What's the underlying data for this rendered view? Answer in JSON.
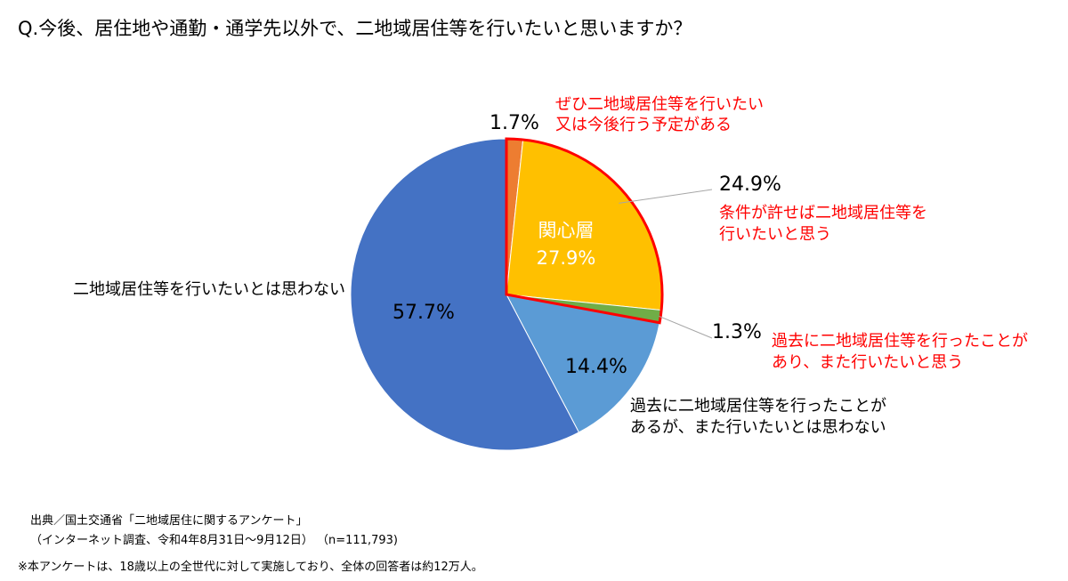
{
  "question": "Q.今後、居住地や通勤・通学先以外で、二地域居住等を行いたいと思いますか？",
  "source": {
    "line1": "出典／国土交通省「二地域居住に関するアンケート」",
    "line2": "（インターネット調査、令和4年8月31日～9月12日） （n=111,793)",
    "note": "※本アンケートは、18歳以上の全世代に対して実施しており、全体の回答者は約12万人。"
  },
  "chart_data": {
    "type": "pie",
    "start": "12 o'clock, clockwise",
    "slices": [
      {
        "key": "s1",
        "value": 1.7,
        "value_label": "1.7%",
        "category_lines": [
          "ぜひ二地域居住等を行いたい",
          "又は今後行う予定がある"
        ],
        "color": "#ED7D31",
        "label_color": "#FF0000"
      },
      {
        "key": "s2",
        "value": 24.9,
        "value_label": "24.9%",
        "category_lines": [
          "条件が許せば二地域居住等を",
          "行いたいと思う"
        ],
        "color": "#FFC000",
        "label_color": "#FF0000"
      },
      {
        "key": "s3",
        "value": 1.3,
        "value_label": "1.3%",
        "category_lines": [
          "過去に二地域居住等を行ったことが",
          "あり、また行いたいと思う"
        ],
        "color": "#70AD47",
        "label_color": "#FF0000"
      },
      {
        "key": "s4",
        "value": 14.4,
        "value_label": "14.4%",
        "category_lines": [
          "過去に二地域居住等を行ったことが",
          "あるが、また行いたいとは思わない"
        ],
        "color": "#5B9BD5",
        "label_color": "#000000"
      },
      {
        "key": "s5",
        "value": 57.7,
        "value_label": "57.7%",
        "category_lines": [
          "二地域居住等を行いたいとは思わない"
        ],
        "color": "#4472C4",
        "label_color": "#000000"
      }
    ],
    "group": {
      "name": "関心層",
      "value": 27.9,
      "value_label": "27.9%",
      "members": [
        "s1",
        "s2",
        "s3"
      ],
      "outline_color": "#FF0000"
    }
  }
}
